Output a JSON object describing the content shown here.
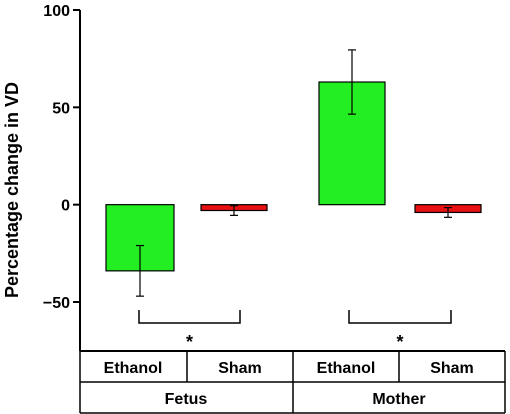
{
  "chart_data": {
    "type": "bar",
    "ylabel": "Percentage change in VD",
    "ylim": [
      -50,
      100
    ],
    "yticks": [
      100,
      50,
      0,
      -50
    ],
    "ytick_labels": [
      "100",
      "50",
      "0",
      "−50"
    ],
    "grid": false,
    "categories": [
      "Ethanol",
      "Sham",
      "Ethanol",
      "Sham"
    ],
    "groups": [
      {
        "label": "Fetus",
        "categories": [
          "Ethanol",
          "Sham"
        ]
      },
      {
        "label": "Mother",
        "categories": [
          "Ethanol",
          "Sham"
        ]
      }
    ],
    "values": [
      -34,
      -3,
      63,
      -4
    ],
    "errors": [
      13,
      2.5,
      16.5,
      2.5
    ],
    "colors": [
      "#22ee22",
      "#e81010",
      "#22ee22",
      "#e81010"
    ],
    "significance": [
      {
        "group": "Fetus",
        "label": "*"
      },
      {
        "group": "Mother",
        "label": "*"
      }
    ]
  }
}
